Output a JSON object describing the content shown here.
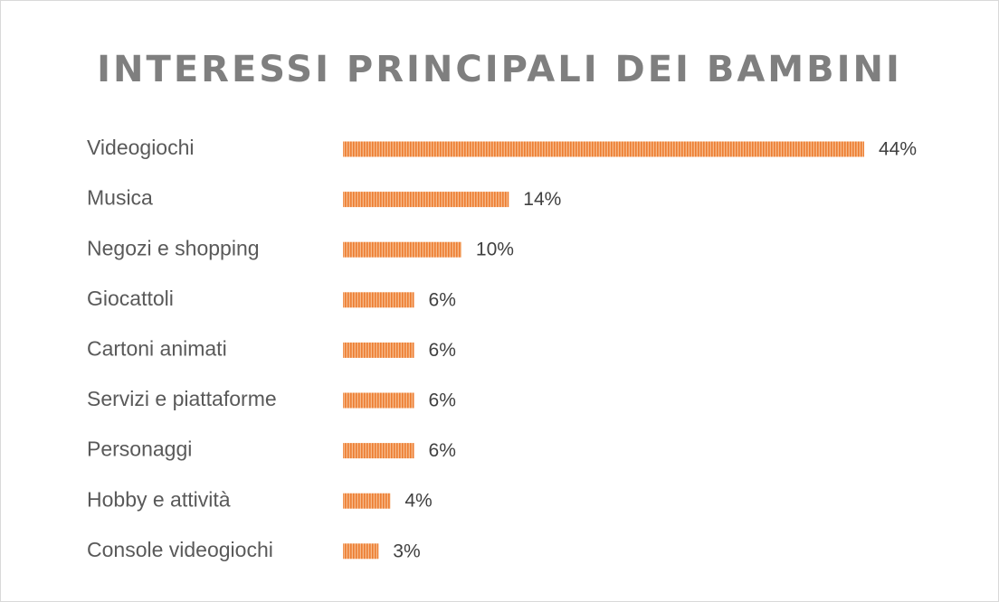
{
  "chart_data": {
    "type": "bar",
    "orientation": "horizontal",
    "title": "INTERESSI PRINCIPALI DEI BAMBINI",
    "categories": [
      "Videogiochi",
      "Musica",
      "Negozi e shopping",
      "Giocattoli",
      "Cartoni animati",
      "Servizi e piattaforme",
      "Personaggi",
      "Hobby e attività",
      "Console videogiochi"
    ],
    "values": [
      44,
      14,
      10,
      6,
      6,
      6,
      6,
      4,
      3
    ],
    "data_labels": [
      "44%",
      "14%",
      "10%",
      "6%",
      "6%",
      "6%",
      "6%",
      "4%",
      "3%"
    ],
    "xlim": [
      0,
      44
    ],
    "grid": false,
    "legend": "none",
    "bar_color": "#ed7d31",
    "label_color": "#595959",
    "title_color": "#7f7f7f"
  }
}
